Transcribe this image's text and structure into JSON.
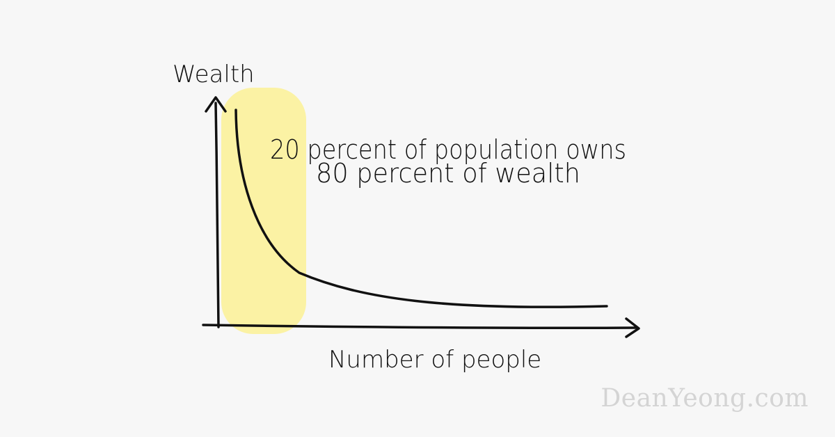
{
  "diagram": {
    "y_axis_label": "Wealth",
    "x_axis_label": "Number of people",
    "annotation_line1": "20 percent of population owns",
    "annotation_line2": "80 percent of wealth",
    "highlight_color": "#fbf2a4",
    "ink_color": "#111111"
  },
  "watermark": "DeanYeong.com"
}
